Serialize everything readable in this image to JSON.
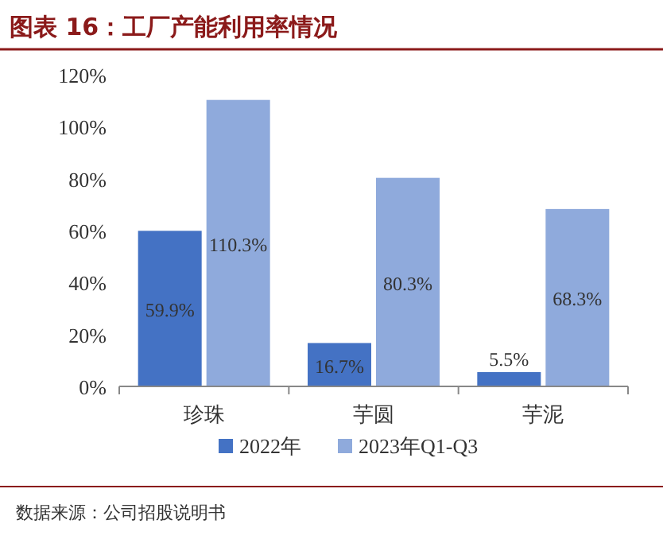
{
  "chart_data": {
    "type": "bar",
    "title": "图表 16：工厂产能利用率情况",
    "categories": [
      "珍珠",
      "芋圆",
      "芋泥"
    ],
    "series": [
      {
        "name": "2022年",
        "color": "#4472c4",
        "values": [
          59.9,
          16.7,
          5.5
        ],
        "value_labels": [
          "59.9%",
          "16.7%",
          "5.5%"
        ]
      },
      {
        "name": "2023年Q1-Q3",
        "color": "#8faadc",
        "values": [
          110.3,
          80.3,
          68.3
        ],
        "value_labels": [
          "110.3%",
          "80.3%",
          "68.3%"
        ]
      }
    ],
    "ylim": [
      0,
      120
    ],
    "yticks": [
      {
        "value": 0,
        "label": "0%"
      },
      {
        "value": 20,
        "label": "20%"
      },
      {
        "value": 40,
        "label": "40%"
      },
      {
        "value": 60,
        "label": "60%"
      },
      {
        "value": 80,
        "label": "80%"
      },
      {
        "value": 100,
        "label": "100%"
      },
      {
        "value": 120,
        "label": "120%"
      }
    ],
    "legend": "bottom",
    "annotations": [
      "数据来源：公司招股说明书"
    ]
  }
}
